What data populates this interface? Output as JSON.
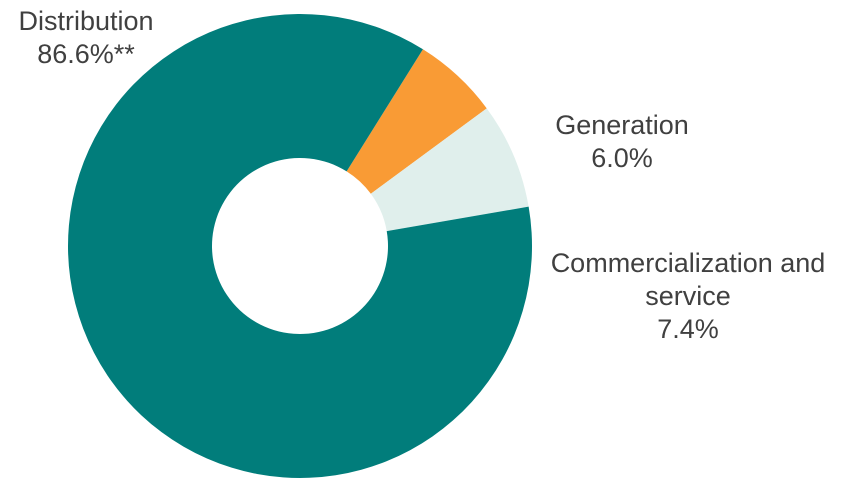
{
  "chart_data": {
    "type": "pie",
    "donut": true,
    "start_angle_deg": 58,
    "legend": "none",
    "slices": [
      {
        "label_lines": [
          "Generation"
        ],
        "value_text": "6.0%",
        "value": 6.0,
        "color": "#F99B35"
      },
      {
        "label_lines": [
          "Commercialization and",
          "service"
        ],
        "value_text": "7.4%",
        "value": 7.4,
        "color": "#E0EFEC"
      },
      {
        "label_lines": [
          "Distribution"
        ],
        "value_text": "86.6%**",
        "value": 86.6,
        "color": "#017D7B"
      }
    ]
  }
}
